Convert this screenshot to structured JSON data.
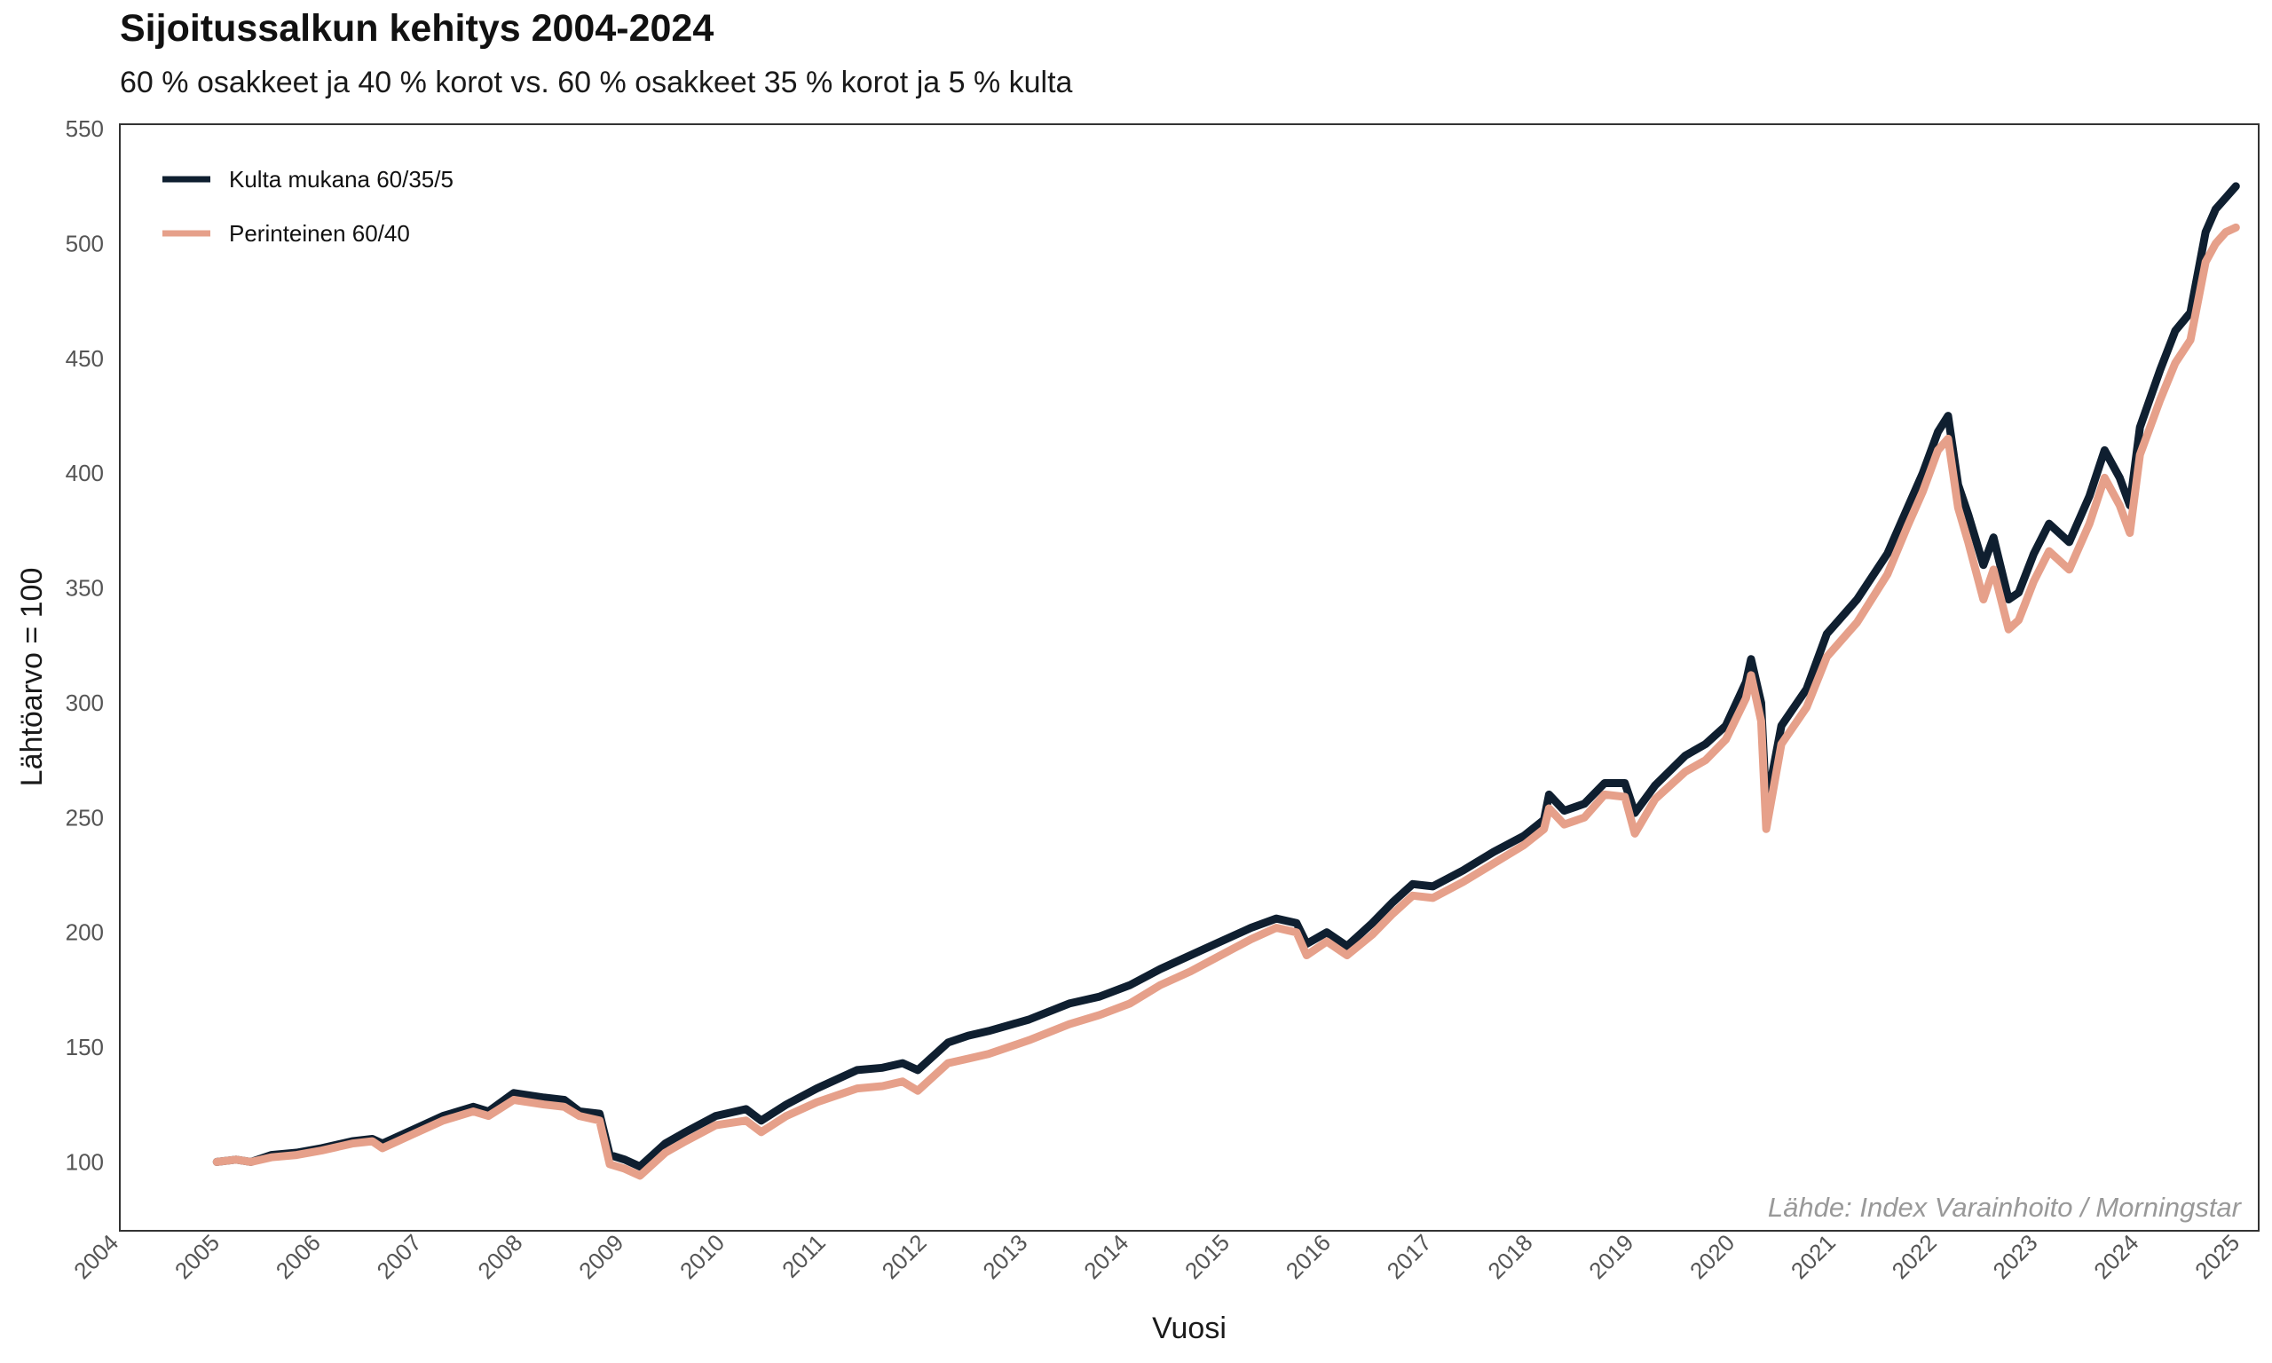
{
  "title": "Sijoitussalkun kehitys 2004-2024",
  "subtitle": "60 % osakkeet ja 40 % korot vs. 60 % osakkeet 35 % korot ja 5 % kulta",
  "chart_data": {
    "type": "line",
    "title": "Sijoitussalkun kehitys 2004-2024",
    "subtitle": "60 % osakkeet ja 40 % korot vs. 60 % osakkeet 35 % korot ja 5 % kulta",
    "xlabel": "Vuosi",
    "ylabel": "Lähtöarvo = 100",
    "xlim": [
      2004,
      2025
    ],
    "ylim": [
      70,
      552
    ],
    "x_ticks": [
      "2004",
      "2005",
      "2006",
      "2007",
      "2008",
      "2009",
      "2010",
      "2011",
      "2012",
      "2013",
      "2014",
      "2015",
      "2016",
      "2017",
      "2018",
      "2019",
      "2020",
      "2021",
      "2022",
      "2023",
      "2024",
      "2025"
    ],
    "y_ticks": [
      "100",
      "150",
      "200",
      "250",
      "300",
      "350",
      "400",
      "450",
      "500",
      "550"
    ],
    "legend_position": "top-left",
    "grid": false,
    "source": "Lähde: Index Varainhoito / Morningstar",
    "series": [
      {
        "name": "Kulta mukana 60/35/5",
        "color": "#0f1f30",
        "points": [
          [
            2004.96,
            100
          ],
          [
            2005.15,
            101
          ],
          [
            2005.3,
            100
          ],
          [
            2005.5,
            103
          ],
          [
            2005.75,
            104
          ],
          [
            2006.0,
            106
          ],
          [
            2006.3,
            109
          ],
          [
            2006.5,
            110
          ],
          [
            2006.6,
            108
          ],
          [
            2006.9,
            114
          ],
          [
            2007.2,
            120
          ],
          [
            2007.5,
            124
          ],
          [
            2007.65,
            122
          ],
          [
            2007.9,
            130
          ],
          [
            2008.2,
            128
          ],
          [
            2008.4,
            127
          ],
          [
            2008.55,
            122
          ],
          [
            2008.75,
            121
          ],
          [
            2008.85,
            103
          ],
          [
            2009.0,
            101
          ],
          [
            2009.15,
            98
          ],
          [
            2009.4,
            108
          ],
          [
            2009.6,
            113
          ],
          [
            2009.9,
            120
          ],
          [
            2010.2,
            123
          ],
          [
            2010.35,
            118
          ],
          [
            2010.6,
            125
          ],
          [
            2010.9,
            132
          ],
          [
            2011.3,
            140
          ],
          [
            2011.55,
            141
          ],
          [
            2011.75,
            143
          ],
          [
            2011.9,
            140
          ],
          [
            2012.2,
            152
          ],
          [
            2012.4,
            155
          ],
          [
            2012.6,
            157
          ],
          [
            2013.0,
            162
          ],
          [
            2013.4,
            169
          ],
          [
            2013.7,
            172
          ],
          [
            2014.0,
            177
          ],
          [
            2014.3,
            184
          ],
          [
            2014.6,
            190
          ],
          [
            2014.9,
            196
          ],
          [
            2015.2,
            202
          ],
          [
            2015.45,
            206
          ],
          [
            2015.65,
            204
          ],
          [
            2015.75,
            195
          ],
          [
            2015.95,
            200
          ],
          [
            2016.15,
            194
          ],
          [
            2016.4,
            204
          ],
          [
            2016.6,
            213
          ],
          [
            2016.8,
            221
          ],
          [
            2017.0,
            220
          ],
          [
            2017.3,
            227
          ],
          [
            2017.6,
            235
          ],
          [
            2017.9,
            242
          ],
          [
            2018.1,
            249
          ],
          [
            2018.15,
            260
          ],
          [
            2018.3,
            253
          ],
          [
            2018.5,
            256
          ],
          [
            2018.7,
            265
          ],
          [
            2018.9,
            265
          ],
          [
            2019.0,
            252
          ],
          [
            2019.2,
            264
          ],
          [
            2019.5,
            277
          ],
          [
            2019.7,
            282
          ],
          [
            2019.9,
            290
          ],
          [
            2020.1,
            309
          ],
          [
            2020.15,
            319
          ],
          [
            2020.25,
            300
          ],
          [
            2020.3,
            255
          ],
          [
            2020.45,
            290
          ],
          [
            2020.7,
            306
          ],
          [
            2020.9,
            330
          ],
          [
            2021.2,
            345
          ],
          [
            2021.5,
            365
          ],
          [
            2021.7,
            385
          ],
          [
            2021.85,
            400
          ],
          [
            2022.0,
            418
          ],
          [
            2022.1,
            425
          ],
          [
            2022.2,
            395
          ],
          [
            2022.3,
            382
          ],
          [
            2022.45,
            360
          ],
          [
            2022.55,
            372
          ],
          [
            2022.7,
            345
          ],
          [
            2022.8,
            348
          ],
          [
            2022.95,
            365
          ],
          [
            2023.1,
            378
          ],
          [
            2023.3,
            370
          ],
          [
            2023.5,
            390
          ],
          [
            2023.65,
            410
          ],
          [
            2023.8,
            398
          ],
          [
            2023.9,
            386
          ],
          [
            2024.0,
            420
          ],
          [
            2024.2,
            445
          ],
          [
            2024.35,
            462
          ],
          [
            2024.5,
            470
          ],
          [
            2024.65,
            505
          ],
          [
            2024.75,
            515
          ],
          [
            2024.85,
            520
          ],
          [
            2024.95,
            525
          ]
        ]
      },
      {
        "name": "Perinteinen 60/40",
        "color": "#e6a08a",
        "points": [
          [
            2004.96,
            100
          ],
          [
            2005.15,
            101
          ],
          [
            2005.3,
            100
          ],
          [
            2005.5,
            102
          ],
          [
            2005.75,
            103
          ],
          [
            2006.0,
            105
          ],
          [
            2006.3,
            108
          ],
          [
            2006.5,
            109
          ],
          [
            2006.6,
            106
          ],
          [
            2006.9,
            112
          ],
          [
            2007.2,
            118
          ],
          [
            2007.5,
            122
          ],
          [
            2007.65,
            120
          ],
          [
            2007.9,
            127
          ],
          [
            2008.2,
            125
          ],
          [
            2008.4,
            124
          ],
          [
            2008.55,
            120
          ],
          [
            2008.75,
            118
          ],
          [
            2008.85,
            99
          ],
          [
            2009.0,
            97
          ],
          [
            2009.15,
            94
          ],
          [
            2009.4,
            104
          ],
          [
            2009.6,
            109
          ],
          [
            2009.9,
            116
          ],
          [
            2010.2,
            118
          ],
          [
            2010.35,
            113
          ],
          [
            2010.6,
            120
          ],
          [
            2010.9,
            126
          ],
          [
            2011.3,
            132
          ],
          [
            2011.55,
            133
          ],
          [
            2011.75,
            135
          ],
          [
            2011.9,
            131
          ],
          [
            2012.2,
            143
          ],
          [
            2012.4,
            145
          ],
          [
            2012.6,
            147
          ],
          [
            2013.0,
            153
          ],
          [
            2013.4,
            160
          ],
          [
            2013.7,
            164
          ],
          [
            2014.0,
            169
          ],
          [
            2014.3,
            177
          ],
          [
            2014.6,
            183
          ],
          [
            2014.9,
            190
          ],
          [
            2015.2,
            197
          ],
          [
            2015.45,
            202
          ],
          [
            2015.65,
            200
          ],
          [
            2015.75,
            190
          ],
          [
            2015.95,
            196
          ],
          [
            2016.15,
            190
          ],
          [
            2016.4,
            199
          ],
          [
            2016.6,
            208
          ],
          [
            2016.8,
            216
          ],
          [
            2017.0,
            215
          ],
          [
            2017.3,
            222
          ],
          [
            2017.6,
            230
          ],
          [
            2017.9,
            238
          ],
          [
            2018.1,
            245
          ],
          [
            2018.15,
            254
          ],
          [
            2018.3,
            247
          ],
          [
            2018.5,
            250
          ],
          [
            2018.7,
            260
          ],
          [
            2018.9,
            259
          ],
          [
            2019.0,
            243
          ],
          [
            2019.2,
            258
          ],
          [
            2019.5,
            270
          ],
          [
            2019.7,
            275
          ],
          [
            2019.9,
            284
          ],
          [
            2020.1,
            302
          ],
          [
            2020.15,
            312
          ],
          [
            2020.25,
            292
          ],
          [
            2020.3,
            245
          ],
          [
            2020.45,
            282
          ],
          [
            2020.7,
            298
          ],
          [
            2020.9,
            320
          ],
          [
            2021.2,
            335
          ],
          [
            2021.5,
            356
          ],
          [
            2021.7,
            377
          ],
          [
            2021.85,
            392
          ],
          [
            2022.0,
            410
          ],
          [
            2022.1,
            415
          ],
          [
            2022.2,
            385
          ],
          [
            2022.3,
            370
          ],
          [
            2022.45,
            345
          ],
          [
            2022.55,
            358
          ],
          [
            2022.7,
            332
          ],
          [
            2022.8,
            336
          ],
          [
            2022.95,
            353
          ],
          [
            2023.1,
            366
          ],
          [
            2023.3,
            358
          ],
          [
            2023.5,
            378
          ],
          [
            2023.65,
            398
          ],
          [
            2023.8,
            386
          ],
          [
            2023.9,
            374
          ],
          [
            2024.0,
            408
          ],
          [
            2024.2,
            432
          ],
          [
            2024.35,
            448
          ],
          [
            2024.5,
            458
          ],
          [
            2024.65,
            492
          ],
          [
            2024.75,
            500
          ],
          [
            2024.85,
            505
          ],
          [
            2024.95,
            507
          ]
        ]
      }
    ]
  }
}
